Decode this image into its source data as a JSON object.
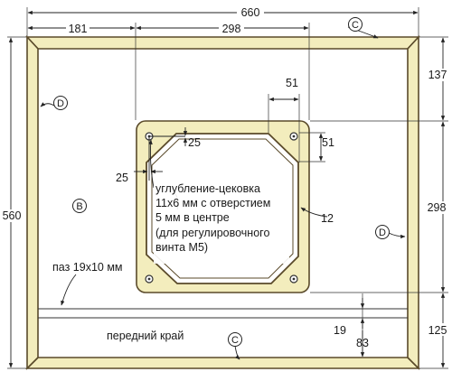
{
  "dimensions": {
    "total_width": "660",
    "left_offset": "181",
    "opening_width": "298",
    "total_height": "560",
    "top_offset": "137",
    "opening_height": "298",
    "bottom_offset": "125",
    "corner_cut_h": "51",
    "corner_cut_v": "51",
    "hole_offset_x": "25",
    "hole_offset_y": "25",
    "hole_inset": "12",
    "groove_offset": "19",
    "groove_to_edge": "83"
  },
  "callouts": {
    "edge_c_top": "C",
    "edge_c_bottom": "C",
    "panel_d_left": "D",
    "panel_d_right": "D",
    "panel_b": "B"
  },
  "notes": {
    "counterbore_line1": "углубление-цековка",
    "counterbore_line2": "11x6 мм с отверстием",
    "counterbore_line3": "5 мм в центре",
    "counterbore_line4": "(для регулировочного",
    "counterbore_line5": "винта М5)",
    "groove": "паз 19x10 мм",
    "front_edge": "передний край"
  },
  "colors": {
    "frame_fill": "#f3edbd",
    "frame_stroke": "#5a4a2a",
    "line": "#222222"
  }
}
